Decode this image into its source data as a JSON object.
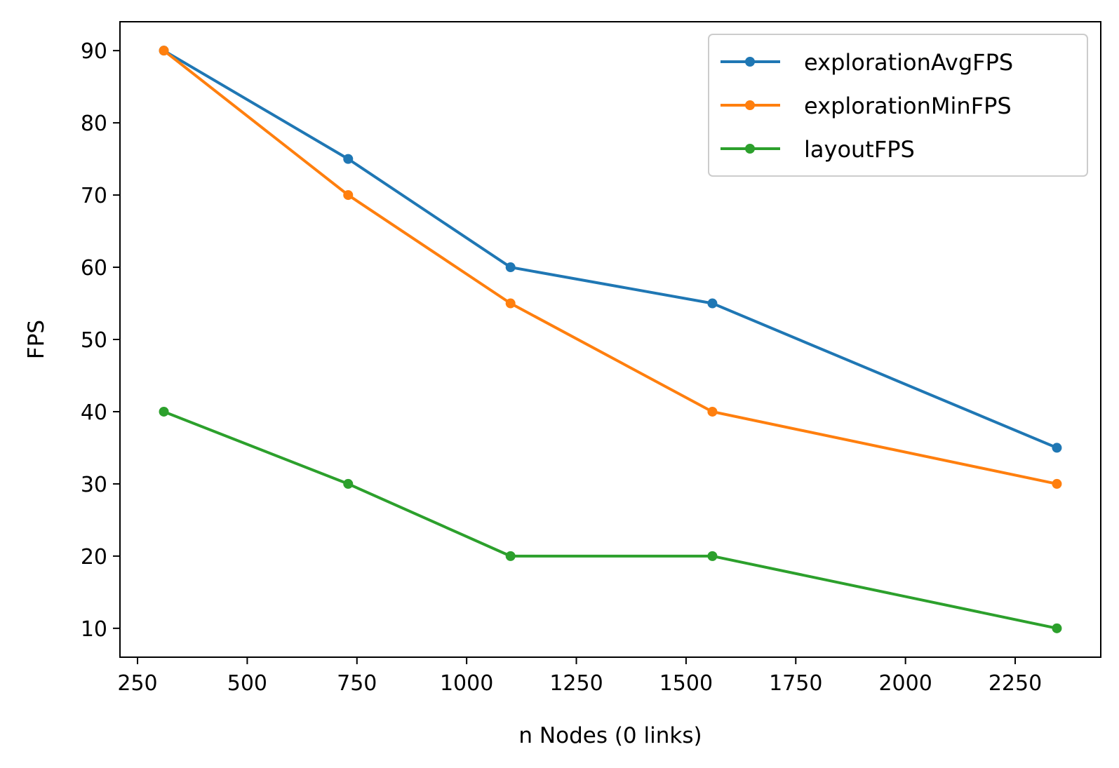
{
  "chart_data": {
    "type": "line",
    "title": "",
    "xlabel": "n Nodes (0 links)",
    "ylabel": "FPS",
    "x": [
      310,
      730,
      1100,
      1560,
      2345
    ],
    "xlim": [
      210,
      2445
    ],
    "ylim": [
      6,
      94
    ],
    "xticks": [
      250,
      500,
      750,
      1000,
      1250,
      1500,
      1750,
      2000,
      2250
    ],
    "yticks": [
      10,
      20,
      30,
      40,
      50,
      60,
      70,
      80,
      90
    ],
    "grid": false,
    "legend_position": "top-right",
    "series": [
      {
        "name": "explorationAvgFPS",
        "color": "#1f77b4",
        "values": [
          90,
          75,
          60,
          55,
          35
        ]
      },
      {
        "name": "explorationMinFPS",
        "color": "#ff7f0e",
        "values": [
          90,
          70,
          55,
          40,
          30
        ]
      },
      {
        "name": "layoutFPS",
        "color": "#2ca02c",
        "values": [
          40,
          30,
          20,
          20,
          10
        ]
      }
    ]
  }
}
